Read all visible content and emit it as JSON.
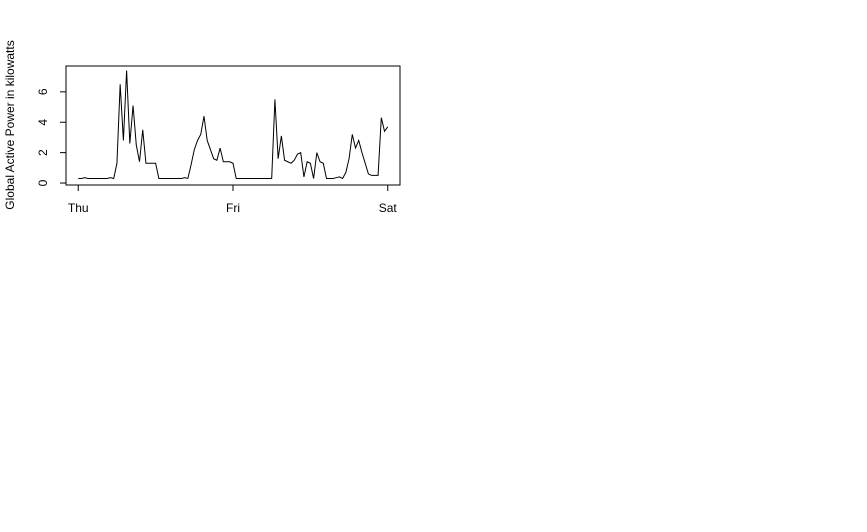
{
  "chart_data": {
    "type": "line",
    "y_label": "Global Active Power in kilowatts",
    "series": [
      {
        "color": "#000000",
        "values": [
          0.3,
          0.3,
          0.35,
          0.3,
          0.3,
          0.3,
          0.3,
          0.3,
          0.3,
          0.3,
          0.35,
          0.3,
          1.3,
          6.5,
          2.8,
          7.4,
          2.6,
          5.1,
          2.5,
          1.4,
          3.5,
          1.3,
          1.3,
          1.3,
          1.3,
          0.3,
          0.3,
          0.3,
          0.3,
          0.3,
          0.3,
          0.3,
          0.3,
          0.35,
          0.3,
          1.2,
          2.2,
          2.8,
          3.2,
          4.4,
          2.8,
          2.2,
          1.6,
          1.5,
          2.3,
          1.4,
          1.4,
          1.4,
          1.3,
          0.3,
          0.3,
          0.3,
          0.3,
          0.3,
          0.3,
          0.3,
          0.3,
          0.3,
          0.3,
          0.3,
          0.3,
          5.5,
          1.6,
          3.1,
          1.5,
          1.4,
          1.3,
          1.5,
          1.9,
          2,
          0.4,
          1.4,
          1.3,
          0.3,
          2,
          1.4,
          1.3,
          0.3,
          0.3,
          0.3,
          0.35,
          0.4,
          0.3,
          0.7,
          1.6,
          3.2,
          2.3,
          2.8,
          2,
          1.3,
          0.6,
          0.5,
          0.5,
          0.5,
          4.3,
          3.4,
          3.7
        ]
      }
    ],
    "xlim": [
      -3.8,
      99.8
    ],
    "xticks": [
      {
        "value": 0,
        "label": "Thu"
      },
      {
        "value": 48,
        "label": "Fri"
      },
      {
        "value": 96,
        "label": "Sat"
      }
    ],
    "ylim": [
      -0.13,
      7.7
    ],
    "yticks": [
      0,
      2,
      4,
      6
    ]
  }
}
